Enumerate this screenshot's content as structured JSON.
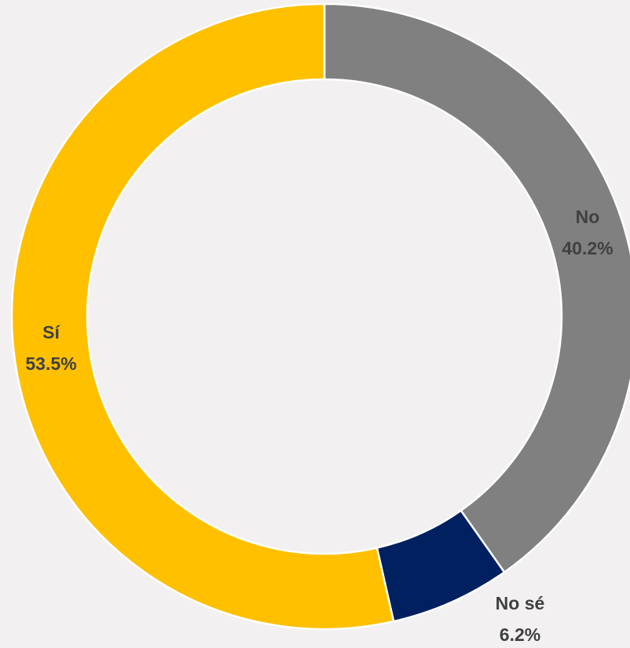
{
  "chart_data": {
    "type": "donut",
    "categories": [
      "No",
      "No sé",
      "Sí"
    ],
    "values": [
      40.2,
      6.2,
      53.5
    ],
    "value_labels": [
      "40.2%",
      "6.2%",
      "53.5%"
    ],
    "colors": [
      "#808080",
      "#002060",
      "#FFC000"
    ]
  }
}
